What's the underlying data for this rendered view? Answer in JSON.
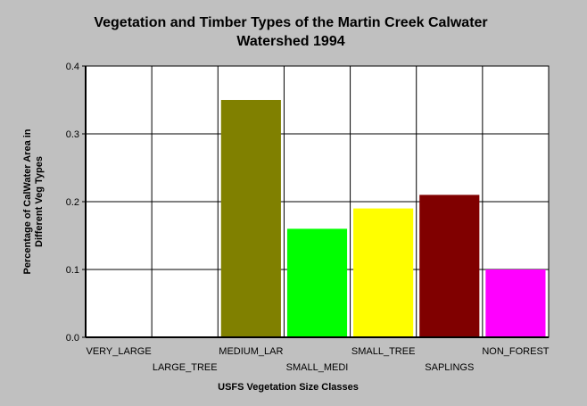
{
  "chart_data": {
    "type": "bar",
    "title_lines": [
      "Vegetation and Timber Types of the Martin Creek Calwater",
      "Watershed 1994"
    ],
    "xlabel": "USFS Vegetation Size Classes",
    "ylabel_lines": [
      "Percentage of CalWater Area in",
      "Different Veg Types"
    ],
    "categories": [
      "VERY_LARGE",
      "LARGE_TREE",
      "MEDIUM_LAR",
      "SMALL_MEDI",
      "SMALL_TREE",
      "SAPLINGS",
      "NON_FOREST"
    ],
    "values": [
      0,
      0,
      0.35,
      0.16,
      0.19,
      0.21,
      0.1
    ],
    "colors": [
      "#808000",
      "#808000",
      "#808000",
      "#00ff00",
      "#ffff00",
      "#800000",
      "#ff00ff"
    ],
    "ylim": [
      0,
      0.4
    ],
    "yticks": [
      "0.0",
      "0.1",
      "0.2",
      "0.3",
      "0.4"
    ],
    "grid": true,
    "legend": "none"
  }
}
